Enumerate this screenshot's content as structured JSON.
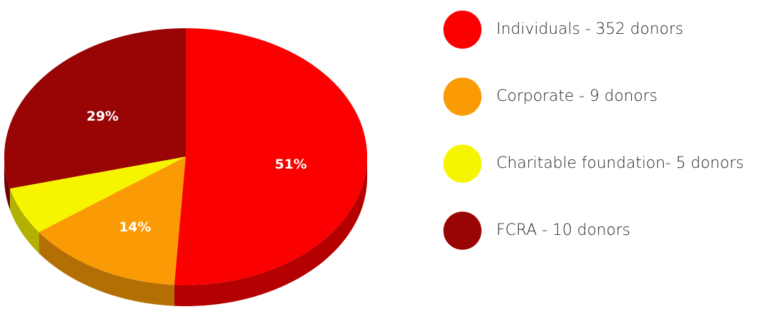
{
  "chart_data": {
    "type": "pie",
    "categories": [
      "Individuals - 352 donors",
      "Corporate - 9 donors",
      "Charitable foundation- 5 donors",
      "FCRA - 10 donors"
    ],
    "values": [
      51,
      14,
      6,
      29
    ],
    "value_labels": [
      "51%",
      "14%",
      null,
      "29%"
    ],
    "colors": [
      "#fa0000",
      "#fa9a05",
      "#f7f400",
      "#990404"
    ],
    "legend": "right"
  }
}
